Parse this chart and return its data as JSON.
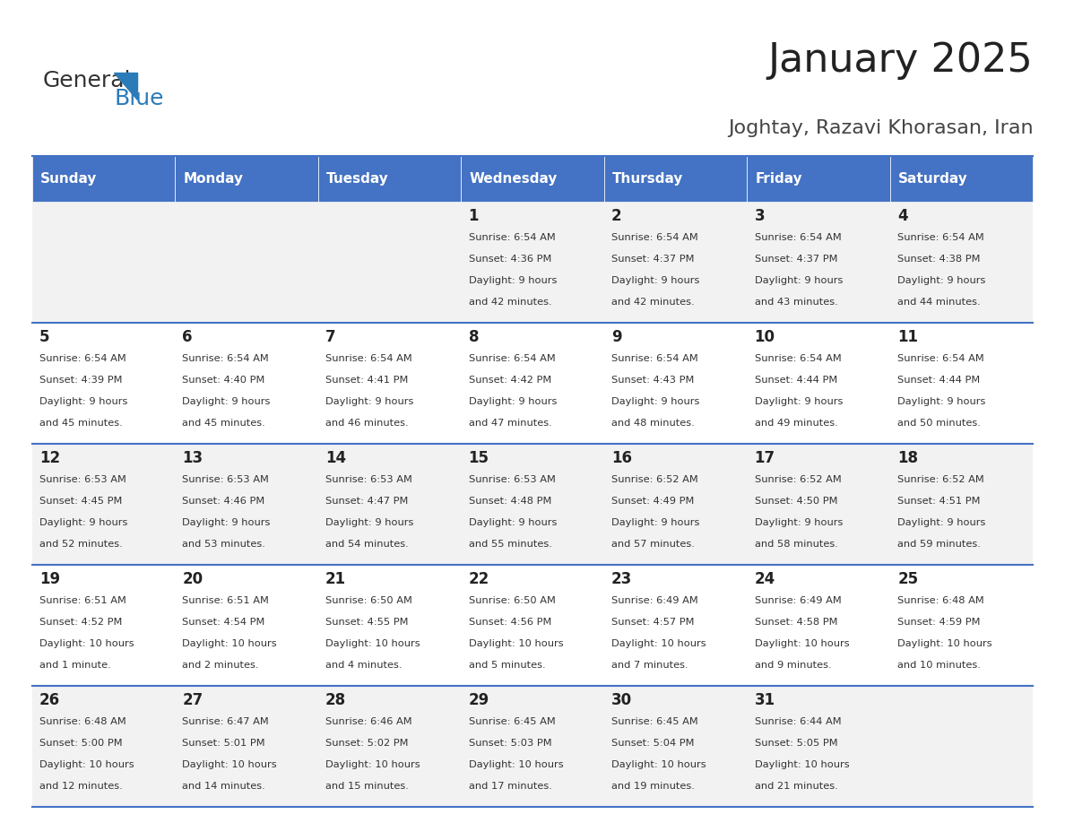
{
  "title": "January 2025",
  "subtitle": "Joghtay, Razavi Khorasan, Iran",
  "header_color": "#4472C4",
  "header_text_color": "#FFFFFF",
  "days_of_week": [
    "Sunday",
    "Monday",
    "Tuesday",
    "Wednesday",
    "Thursday",
    "Friday",
    "Saturday"
  ],
  "background_color": "#FFFFFF",
  "cell_bg_even": "#F2F2F2",
  "cell_bg_odd": "#FFFFFF",
  "separator_color": "#4472C4",
  "text_color": "#333333",
  "calendar": [
    [
      {
        "day": "",
        "sunrise": "",
        "sunset": "",
        "daylight": ""
      },
      {
        "day": "",
        "sunrise": "",
        "sunset": "",
        "daylight": ""
      },
      {
        "day": "",
        "sunrise": "",
        "sunset": "",
        "daylight": ""
      },
      {
        "day": "1",
        "sunrise": "6:54 AM",
        "sunset": "4:36 PM",
        "daylight": "9 hours and 42 minutes."
      },
      {
        "day": "2",
        "sunrise": "6:54 AM",
        "sunset": "4:37 PM",
        "daylight": "9 hours and 42 minutes."
      },
      {
        "day": "3",
        "sunrise": "6:54 AM",
        "sunset": "4:37 PM",
        "daylight": "9 hours and 43 minutes."
      },
      {
        "day": "4",
        "sunrise": "6:54 AM",
        "sunset": "4:38 PM",
        "daylight": "9 hours and 44 minutes."
      }
    ],
    [
      {
        "day": "5",
        "sunrise": "6:54 AM",
        "sunset": "4:39 PM",
        "daylight": "9 hours and 45 minutes."
      },
      {
        "day": "6",
        "sunrise": "6:54 AM",
        "sunset": "4:40 PM",
        "daylight": "9 hours and 45 minutes."
      },
      {
        "day": "7",
        "sunrise": "6:54 AM",
        "sunset": "4:41 PM",
        "daylight": "9 hours and 46 minutes."
      },
      {
        "day": "8",
        "sunrise": "6:54 AM",
        "sunset": "4:42 PM",
        "daylight": "9 hours and 47 minutes."
      },
      {
        "day": "9",
        "sunrise": "6:54 AM",
        "sunset": "4:43 PM",
        "daylight": "9 hours and 48 minutes."
      },
      {
        "day": "10",
        "sunrise": "6:54 AM",
        "sunset": "4:44 PM",
        "daylight": "9 hours and 49 minutes."
      },
      {
        "day": "11",
        "sunrise": "6:54 AM",
        "sunset": "4:44 PM",
        "daylight": "9 hours and 50 minutes."
      }
    ],
    [
      {
        "day": "12",
        "sunrise": "6:53 AM",
        "sunset": "4:45 PM",
        "daylight": "9 hours and 52 minutes."
      },
      {
        "day": "13",
        "sunrise": "6:53 AM",
        "sunset": "4:46 PM",
        "daylight": "9 hours and 53 minutes."
      },
      {
        "day": "14",
        "sunrise": "6:53 AM",
        "sunset": "4:47 PM",
        "daylight": "9 hours and 54 minutes."
      },
      {
        "day": "15",
        "sunrise": "6:53 AM",
        "sunset": "4:48 PM",
        "daylight": "9 hours and 55 minutes."
      },
      {
        "day": "16",
        "sunrise": "6:52 AM",
        "sunset": "4:49 PM",
        "daylight": "9 hours and 57 minutes."
      },
      {
        "day": "17",
        "sunrise": "6:52 AM",
        "sunset": "4:50 PM",
        "daylight": "9 hours and 58 minutes."
      },
      {
        "day": "18",
        "sunrise": "6:52 AM",
        "sunset": "4:51 PM",
        "daylight": "9 hours and 59 minutes."
      }
    ],
    [
      {
        "day": "19",
        "sunrise": "6:51 AM",
        "sunset": "4:52 PM",
        "daylight": "10 hours and 1 minute."
      },
      {
        "day": "20",
        "sunrise": "6:51 AM",
        "sunset": "4:54 PM",
        "daylight": "10 hours and 2 minutes."
      },
      {
        "day": "21",
        "sunrise": "6:50 AM",
        "sunset": "4:55 PM",
        "daylight": "10 hours and 4 minutes."
      },
      {
        "day": "22",
        "sunrise": "6:50 AM",
        "sunset": "4:56 PM",
        "daylight": "10 hours and 5 minutes."
      },
      {
        "day": "23",
        "sunrise": "6:49 AM",
        "sunset": "4:57 PM",
        "daylight": "10 hours and 7 minutes."
      },
      {
        "day": "24",
        "sunrise": "6:49 AM",
        "sunset": "4:58 PM",
        "daylight": "10 hours and 9 minutes."
      },
      {
        "day": "25",
        "sunrise": "6:48 AM",
        "sunset": "4:59 PM",
        "daylight": "10 hours and 10 minutes."
      }
    ],
    [
      {
        "day": "26",
        "sunrise": "6:48 AM",
        "sunset": "5:00 PM",
        "daylight": "10 hours and 12 minutes."
      },
      {
        "day": "27",
        "sunrise": "6:47 AM",
        "sunset": "5:01 PM",
        "daylight": "10 hours and 14 minutes."
      },
      {
        "day": "28",
        "sunrise": "6:46 AM",
        "sunset": "5:02 PM",
        "daylight": "10 hours and 15 minutes."
      },
      {
        "day": "29",
        "sunrise": "6:45 AM",
        "sunset": "5:03 PM",
        "daylight": "10 hours and 17 minutes."
      },
      {
        "day": "30",
        "sunrise": "6:45 AM",
        "sunset": "5:04 PM",
        "daylight": "10 hours and 19 minutes."
      },
      {
        "day": "31",
        "sunrise": "6:44 AM",
        "sunset": "5:05 PM",
        "daylight": "10 hours and 21 minutes."
      },
      {
        "day": "",
        "sunrise": "",
        "sunset": "",
        "daylight": ""
      }
    ]
  ]
}
